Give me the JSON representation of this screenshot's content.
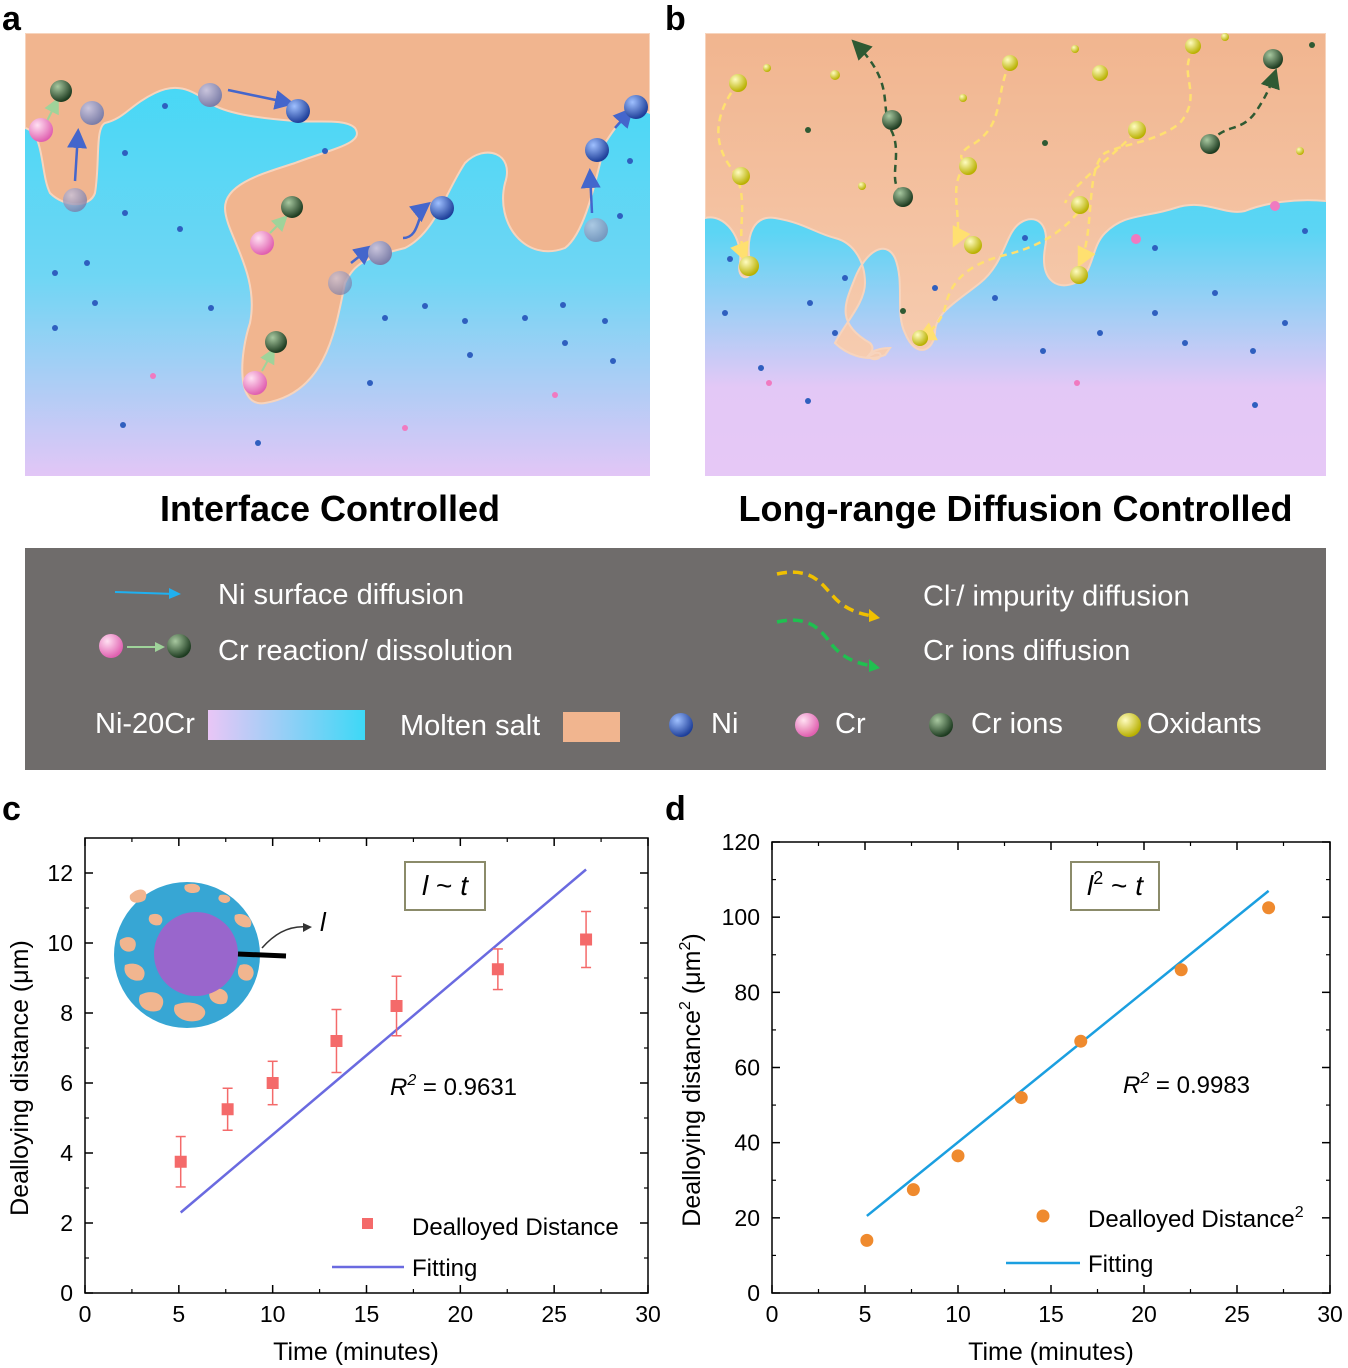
{
  "panel_labels": {
    "a": "a",
    "b": "b",
    "c": "c",
    "d": "d"
  },
  "schematics": {
    "a_title": "Interface Controlled",
    "b_title": "Long-range Diffusion Controlled"
  },
  "legend": {
    "ni_surface_diffusion": "Ni surface diffusion",
    "cr_reaction": "Cr reaction/ dissolution",
    "cl_impurity_prefix": "Cl",
    "cl_impurity_sup": "-",
    "cl_impurity_rest": "/ impurity diffusion",
    "cr_ions_diffusion": "Cr ions diffusion",
    "ni20cr": "Ni-20Cr",
    "molten_salt": "Molten salt",
    "ni": "Ni",
    "cr": "Cr",
    "cr_ions": "Cr ions",
    "oxidants": "Oxidants"
  },
  "colors": {
    "alloy_top": "#3dd8f6",
    "alloy_bottom": "#e6c8f6",
    "salt": "#f1b58f",
    "legend_bg": "#6f6c6b",
    "ni_atom": "#2f5fbf",
    "cr_atom": "#f07ac0",
    "cr_ion": "#2f5a33",
    "oxidant": "#e8e030",
    "fit_c": "#6a6ae0",
    "scatter_c": "#f46a6a",
    "fit_d": "#1b9fe0",
    "scatter_d": "#ef8a2e"
  },
  "chart_data": [
    {
      "type": "scatter",
      "panel": "c",
      "xlabel": "Time (minutes)",
      "ylabel": "Dealloying distance (μm)",
      "xlim": [
        0,
        30
      ],
      "ylim": [
        0,
        13
      ],
      "xticks": [
        0,
        5,
        10,
        15,
        20,
        25,
        30
      ],
      "yticks": [
        0,
        2,
        4,
        6,
        8,
        10,
        12
      ],
      "series": [
        {
          "name": "Dealloyed Distance",
          "x": [
            5.1,
            7.6,
            10.0,
            13.4,
            16.6,
            22.0,
            26.7
          ],
          "values": [
            3.75,
            5.25,
            6.0,
            7.2,
            8.2,
            9.25,
            10.1
          ],
          "errors": [
            0.72,
            0.6,
            0.62,
            0.9,
            0.85,
            0.58,
            0.8
          ]
        },
        {
          "name": "Fitting",
          "x": [
            5.1,
            26.7
          ],
          "values": [
            2.3,
            12.1
          ]
        }
      ],
      "annotations": {
        "formula_l": "l",
        "formula_rest": " ~ ",
        "formula_t": "t",
        "r2_r": "R",
        "r2_sup": "2",
        "r2_value": " = 0.9631",
        "inset_label": "l"
      },
      "legend_position": "bottom-right"
    },
    {
      "type": "scatter",
      "panel": "d",
      "xlabel": "Time (minutes)",
      "ylabel_main": "Dealloying distance",
      "ylabel_sup": "2",
      "ylabel_units": " (μm",
      "ylabel_units_sup": "2",
      "ylabel_close": ")",
      "xlim": [
        0,
        30
      ],
      "ylim": [
        0,
        120
      ],
      "xticks": [
        0,
        5,
        10,
        15,
        20,
        25,
        30
      ],
      "yticks": [
        0,
        20,
        40,
        60,
        80,
        100,
        120
      ],
      "series": [
        {
          "name": "Dealloyed Distance",
          "name_sup": "2",
          "x": [
            5.1,
            7.6,
            10.0,
            13.4,
            16.6,
            22.0,
            26.7
          ],
          "values": [
            14,
            27.5,
            36.5,
            52,
            67,
            86,
            102.5
          ]
        },
        {
          "name": "Fitting",
          "x": [
            5.1,
            26.7
          ],
          "values": [
            20.5,
            107
          ]
        }
      ],
      "annotations": {
        "formula_l": "l",
        "formula_sup": "2",
        "formula_rest": " ~ ",
        "formula_t": "t",
        "r2_r": "R",
        "r2_sup": "2",
        "r2_value": " = 0.9983"
      },
      "legend_position": "bottom-right"
    }
  ]
}
